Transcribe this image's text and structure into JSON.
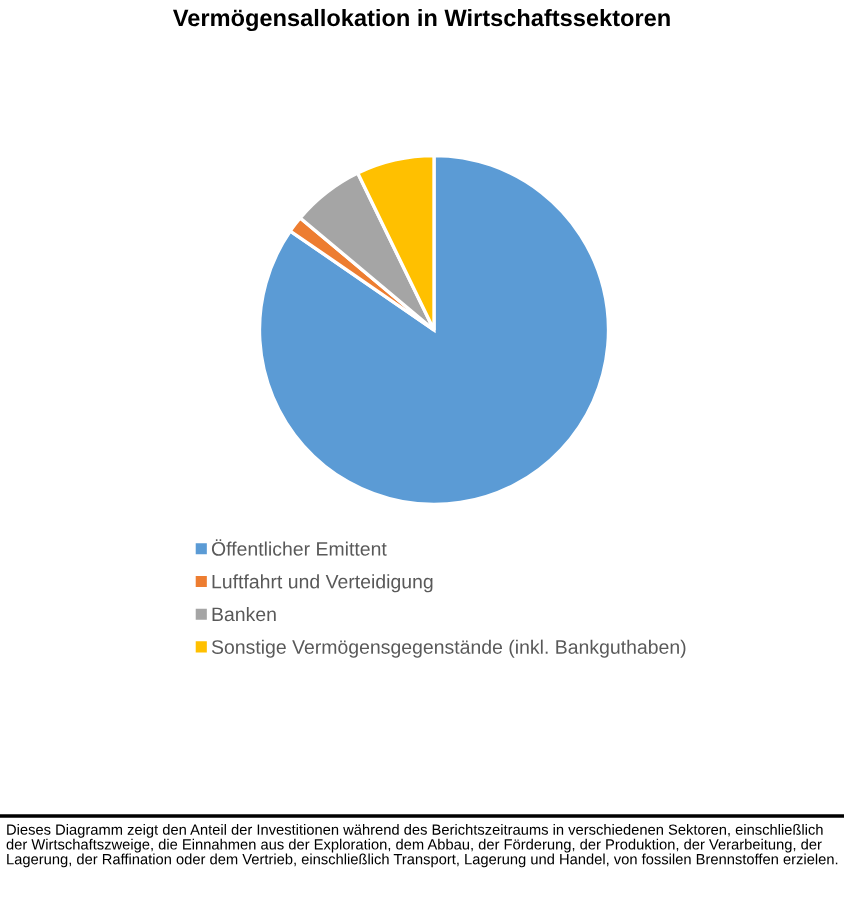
{
  "chart_data": {
    "type": "pie",
    "title": "Vermögensallokation in Wirtschaftssektoren",
    "categories": [
      "Öffentlicher Emittent",
      "Luftfahrt und Verteidigung",
      "Banken",
      "Sonstige Vermögensgegenstände (inkl. Bankguthaben)"
    ],
    "values": [
      84.6,
      1.5,
      6.7,
      7.2
    ],
    "colors": [
      "#5b9bd5",
      "#ed7d31",
      "#a5a5a5",
      "#ffc000"
    ],
    "legend": "bottom",
    "annotations": [
      "Dieses Diagramm zeigt den Anteil der Investitionen während des Berichtszeitraums in verschiedenen Sektoren, einschließlich der Wirtschaftszweige, die Einnahmen aus der Exploration, dem Abbau, der Förderung, der Produktion, der Verarbeitung, der Lagerung, der Raffination oder dem Vertrieb, einschließlich Transport, Lagerung und Handel, von fossilen Brennstoffen erzielen."
    ]
  }
}
